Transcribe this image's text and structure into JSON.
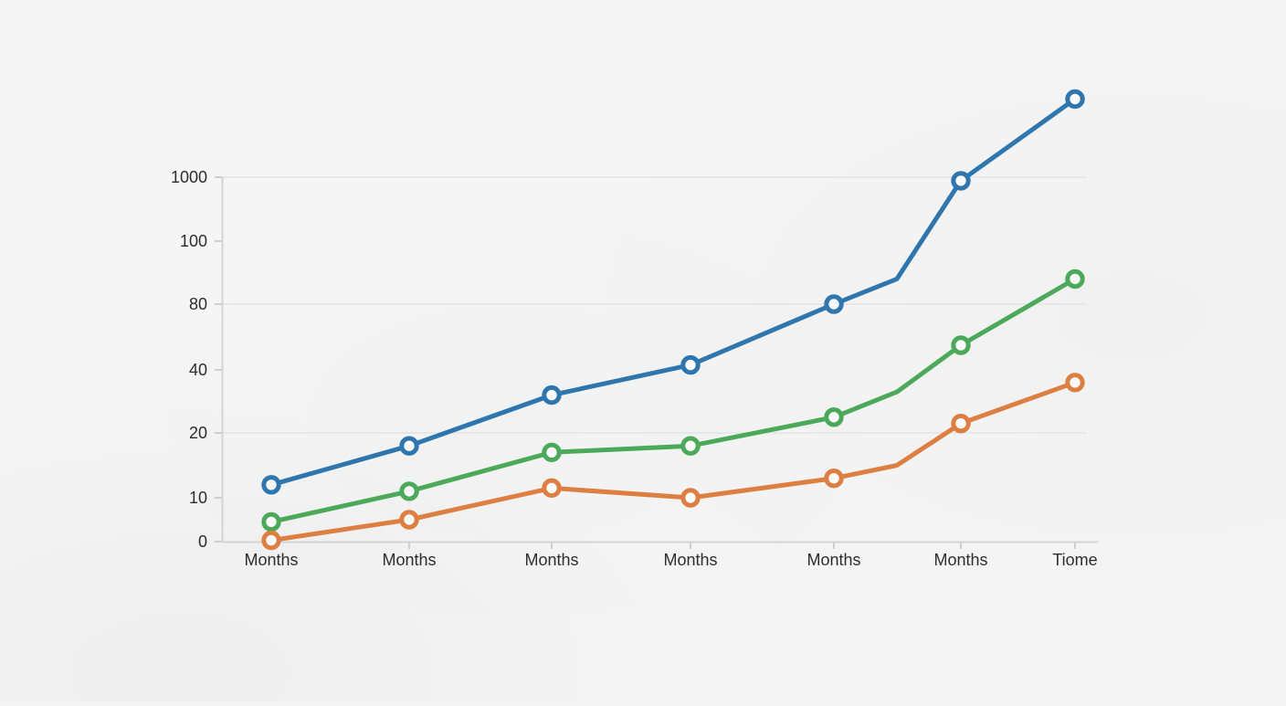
{
  "chart_data": {
    "type": "line",
    "title": "",
    "legend": "none",
    "categories": [
      "Months",
      "Months",
      "Months",
      "Months",
      "Months",
      "Months",
      "Tiome"
    ],
    "y_axis": {
      "tick_labels": [
        "0",
        "10",
        "20",
        "40",
        "80",
        "100",
        "1000"
      ],
      "tick_values": [
        0,
        10,
        20,
        40,
        80,
        100,
        1000
      ],
      "scale": "non-linear (tick labels evenly spaced)",
      "gridlines_at": [
        20,
        80,
        1000
      ]
    },
    "series": [
      {
        "name": "blue",
        "color": "#2e76ad",
        "values": [
          12,
          18,
          32,
          43,
          80,
          950,
          2100
        ],
        "unmarked_bend": {
          "after_index": 4,
          "value": 88
        }
      },
      {
        "name": "green",
        "color": "#4ca95a",
        "values": [
          4.5,
          11,
          17,
          18,
          25,
          55,
          88
        ],
        "unmarked_bend": {
          "after_index": 4,
          "value": 33
        }
      },
      {
        "name": "orange",
        "color": "#dd7f42",
        "values": [
          0.3,
          5,
          11.5,
          10,
          13,
          23,
          36
        ],
        "unmarked_bend": {
          "after_index": 4,
          "value": 15
        }
      }
    ]
  },
  "colors": {
    "background": "#f5f5f6",
    "axis": "#d4d4d6",
    "tick": "#cfcfd1",
    "gridline": "#e7e7e9",
    "label": "#2d2d2f",
    "marker_fill": "#fafafa"
  }
}
